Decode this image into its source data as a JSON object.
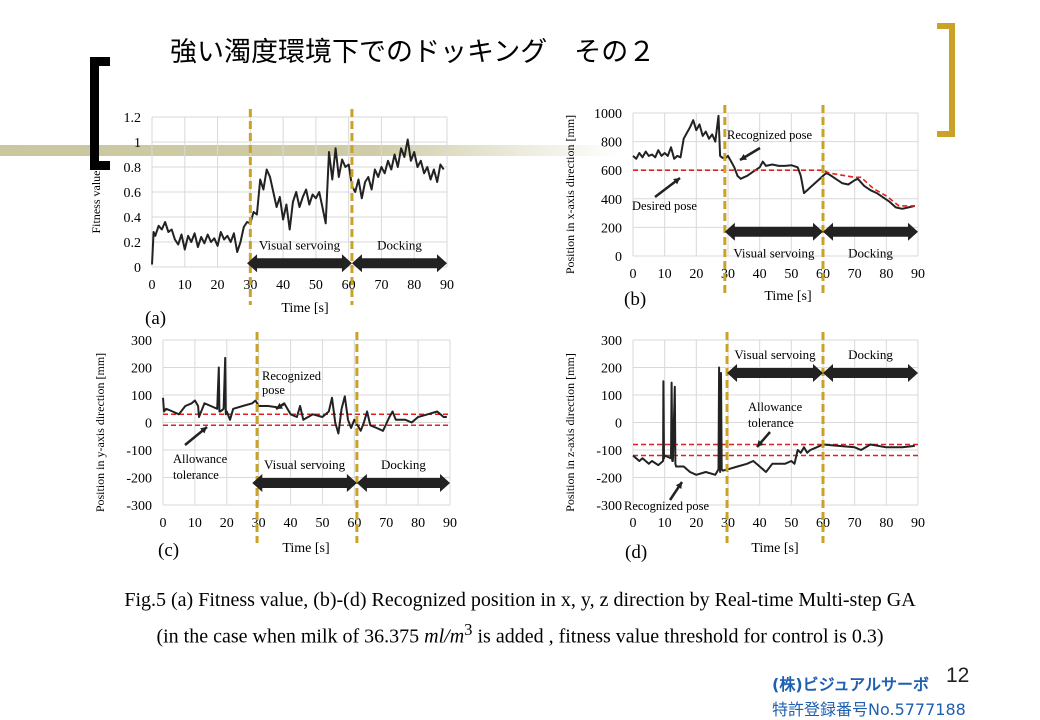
{
  "slide": {
    "title": "強い濁度環境下でのドッキング　その２",
    "caption_line1": "Fig.5 (a) Fitness value, (b)-(d) Recognized position in x, y, z direction by Real-time Multi-step GA",
    "caption_line2_pre": "(in the case when milk of 36.375 ",
    "caption_unit": "ml/m",
    "caption_exp": "3",
    "caption_line2_post": " is added , fitness value threshold for control is 0.3)",
    "company": "(株)ビジュアルサーボ",
    "patent": "特許登録番号No.5777188",
    "page_number": "12",
    "colors": {
      "accent_gold": "#c9a227",
      "band": "#c9c79e",
      "footer_blue": "#1f5fb0",
      "desired": "#e02020",
      "series": "#222222"
    }
  },
  "chart_data": [
    {
      "type": "line",
      "panel": "(a)",
      "xlabel": "Time  [s]",
      "ylabel": "Fitness value",
      "xlim": [
        0,
        90
      ],
      "ylim": [
        0,
        1.2
      ],
      "xticks": [
        0,
        10,
        20,
        30,
        40,
        50,
        60,
        70,
        80,
        90
      ],
      "yticks": [
        "0",
        "0.2",
        "0.4",
        "0.6",
        "0.8",
        "1",
        "1.2"
      ],
      "ytick_values": [
        0,
        0.2,
        0.4,
        0.6,
        0.8,
        1,
        1.2
      ],
      "grid": true,
      "phase_lines": [
        30,
        61
      ],
      "phases": [
        {
          "label": "Visual  servoing",
          "from": 29,
          "to": 61,
          "y": 0.03
        },
        {
          "label": "Docking",
          "from": 61,
          "to": 90,
          "y": 0.03
        }
      ],
      "series": [
        {
          "x": [
            0,
            0.5,
            1,
            2,
            3,
            4,
            5,
            6,
            7,
            8,
            9,
            10,
            11,
            12,
            13,
            14,
            15,
            16,
            17,
            18,
            19,
            20,
            21,
            22,
            23,
            24,
            25,
            26,
            27,
            28,
            29,
            30,
            31,
            32,
            33,
            34,
            35,
            36,
            37,
            38,
            39,
            40,
            41,
            42,
            43,
            44,
            45,
            46,
            47,
            48,
            49,
            50,
            51,
            52,
            53,
            54,
            55,
            56,
            57,
            58,
            59,
            60,
            61,
            62,
            63,
            64,
            65,
            66,
            67,
            68,
            69,
            70,
            71,
            72,
            73,
            74,
            75,
            76,
            77,
            78,
            79,
            80,
            81,
            82,
            83,
            84,
            85,
            86,
            87,
            88,
            89
          ],
          "y": [
            0.02,
            0.28,
            0.25,
            0.33,
            0.3,
            0.36,
            0.28,
            0.3,
            0.22,
            0.18,
            0.26,
            0.14,
            0.25,
            0.2,
            0.27,
            0.16,
            0.24,
            0.19,
            0.26,
            0.2,
            0.23,
            0.17,
            0.28,
            0.22,
            0.25,
            0.2,
            0.27,
            0.12,
            0.2,
            0.32,
            0.36,
            0.35,
            0.44,
            0.42,
            0.7,
            0.62,
            0.78,
            0.72,
            0.6,
            0.48,
            0.56,
            0.38,
            0.5,
            0.3,
            0.52,
            0.6,
            0.48,
            0.56,
            0.62,
            0.5,
            0.58,
            0.55,
            0.6,
            0.48,
            0.35,
            0.92,
            0.7,
            0.95,
            0.72,
            0.86,
            0.8,
            0.82,
            0.65,
            0.6,
            0.7,
            0.55,
            0.68,
            0.72,
            0.62,
            0.78,
            0.72,
            0.8,
            0.75,
            0.85,
            0.78,
            0.9,
            0.8,
            0.95,
            0.88,
            1.02,
            0.85,
            0.92,
            0.8,
            0.85,
            0.75,
            0.8,
            0.7,
            0.78,
            0.68,
            0.82,
            0.78
          ]
        }
      ],
      "annotations": []
    },
    {
      "type": "line",
      "panel": "(b)",
      "xlabel": "Time  [s]",
      "ylabel": "Position in x-axis direction [mm]",
      "xlim": [
        0,
        90
      ],
      "ylim": [
        0,
        1000
      ],
      "xticks": [
        0,
        10,
        20,
        30,
        40,
        50,
        60,
        70,
        80,
        90
      ],
      "yticks": [
        "0",
        "200",
        "400",
        "600",
        "800",
        "1000"
      ],
      "ytick_values": [
        0,
        200,
        400,
        600,
        800,
        1000
      ],
      "grid": true,
      "phase_lines": [
        29,
        60
      ],
      "phases": [
        {
          "label": "Visual  servoing",
          "from": 29,
          "to": 60,
          "y": 170
        },
        {
          "label": "Docking",
          "from": 60,
          "to": 90,
          "y": 170
        }
      ],
      "series": [
        {
          "x": [
            0,
            1,
            2,
            3,
            4,
            5,
            6,
            7,
            8,
            9,
            10,
            11,
            12,
            13,
            14,
            15,
            16,
            17,
            18,
            19,
            20,
            21,
            22,
            23,
            24,
            25,
            26,
            27,
            27.5,
            28,
            29,
            30,
            31,
            32,
            33,
            34,
            35,
            36,
            38,
            40,
            41,
            42,
            44,
            46,
            48,
            50,
            52,
            53,
            54,
            55,
            56,
            58,
            60,
            61,
            62,
            64,
            66,
            68,
            70,
            71,
            73,
            75,
            77,
            79,
            81,
            83,
            85,
            87,
            89
          ],
          "y": [
            700,
            680,
            720,
            690,
            730,
            700,
            710,
            690,
            740,
            700,
            720,
            700,
            760,
            680,
            700,
            690,
            820,
            860,
            900,
            950,
            880,
            920,
            840,
            870,
            820,
            850,
            800,
            980,
            700,
            690,
            680,
            700,
            660,
            620,
            560,
            540,
            550,
            560,
            590,
            620,
            660,
            630,
            640,
            630,
            630,
            635,
            620,
            560,
            440,
            460,
            480,
            520,
            560,
            580,
            570,
            540,
            510,
            500,
            530,
            540,
            490,
            460,
            440,
            410,
            380,
            340,
            330,
            340,
            350
          ]
        },
        {
          "name_hidden": true,
          "style": "desired",
          "x": [
            0,
            60,
            62,
            70,
            72,
            76,
            80,
            84,
            89
          ],
          "y": [
            600,
            600,
            580,
            550,
            550,
            470,
            420,
            350,
            350
          ]
        }
      ],
      "annotations": [
        {
          "text": "Recognized pose"
        },
        {
          "text": "Desired pose"
        }
      ]
    },
    {
      "type": "line",
      "panel": "(c)",
      "xlabel": "Time  [s]",
      "ylabel": "Position in y-axis direction [mm]",
      "xlim": [
        0,
        90
      ],
      "ylim": [
        -300,
        300
      ],
      "xticks": [
        0,
        10,
        20,
        30,
        40,
        50,
        60,
        70,
        80,
        90
      ],
      "yticks": [
        "-300",
        "-200",
        "-100",
        "0",
        "100",
        "200",
        "300"
      ],
      "ytick_values": [
        -300,
        -200,
        -100,
        0,
        100,
        200,
        300
      ],
      "grid": true,
      "phase_lines": [
        29.5,
        60.8
      ],
      "phases": [
        {
          "label": "Visual  servoing",
          "from": 28,
          "to": 60.8,
          "y": -220
        },
        {
          "label": "Docking",
          "from": 60.8,
          "to": 90,
          "y": -220
        }
      ],
      "tolerance": [
        30,
        -10
      ],
      "series": [
        {
          "x": [
            0,
            0.3,
            1,
            3,
            5,
            7,
            9,
            10,
            11,
            11.3,
            13,
            15,
            17,
            17.5,
            17.7,
            18,
            19,
            19.5,
            19.7,
            20,
            21,
            22,
            25,
            28,
            29,
            30,
            33,
            36,
            38,
            40,
            42,
            43,
            44,
            47,
            50,
            52,
            53,
            54,
            55,
            56,
            57,
            58,
            59,
            60,
            62,
            63,
            64,
            65,
            67,
            69,
            71,
            72,
            73,
            76,
            78,
            80,
            83,
            86,
            88,
            89
          ],
          "y": [
            90,
            40,
            50,
            40,
            30,
            60,
            70,
            80,
            60,
            20,
            70,
            60,
            50,
            200,
            40,
            40,
            50,
            235,
            30,
            40,
            10,
            50,
            60,
            70,
            80,
            60,
            60,
            55,
            70,
            30,
            20,
            60,
            10,
            30,
            20,
            40,
            90,
            0,
            -40,
            50,
            95,
            10,
            -20,
            10,
            -30,
            0,
            40,
            -10,
            -20,
            -30,
            20,
            40,
            10,
            10,
            0,
            20,
            30,
            40,
            20,
            20
          ]
        }
      ],
      "annotations": [
        {
          "text": "Recognized"
        },
        {
          "text": "pose"
        },
        {
          "text": "Allowance"
        },
        {
          "text": "tolerance"
        }
      ]
    },
    {
      "type": "line",
      "panel": "(d)",
      "xlabel": "Time  [s]",
      "ylabel": "Position in z-axis direction [mm]",
      "xlim": [
        0,
        90
      ],
      "ylim": [
        -300,
        300
      ],
      "xticks": [
        0,
        10,
        20,
        30,
        40,
        50,
        60,
        70,
        80,
        90
      ],
      "yticks": [
        "-300",
        "-200",
        "-100",
        "0",
        "100",
        "200",
        "300"
      ],
      "ytick_values": [
        -300,
        -200,
        -100,
        0,
        100,
        200,
        300
      ],
      "grid": true,
      "phase_lines": [
        29.7,
        60
      ],
      "phases": [
        {
          "label": "Visual  servoing",
          "from": 29.7,
          "to": 60,
          "y": 180
        },
        {
          "label": "Docking",
          "from": 60,
          "to": 90,
          "y": 180
        }
      ],
      "tolerance": [
        -80,
        -120
      ],
      "series": [
        {
          "x": [
            0,
            2,
            3,
            5,
            6,
            8,
            9.5,
            9.6,
            9.8,
            10,
            12,
            12.2,
            12.4,
            12.6,
            13.2,
            13.4,
            13.6,
            16,
            18,
            20,
            23,
            26,
            27,
            27.2,
            27.5,
            27.8,
            28,
            28.3,
            30,
            33,
            36,
            38,
            40,
            42,
            44,
            46,
            48,
            50,
            51,
            52,
            53,
            54,
            55,
            56,
            58,
            60,
            65,
            70,
            72,
            75,
            80,
            85,
            89
          ],
          "y": [
            -120,
            -140,
            -130,
            -150,
            -140,
            -155,
            -140,
            150,
            -130,
            -120,
            -130,
            145,
            -140,
            -140,
            130,
            -150,
            -160,
            -160,
            -180,
            -190,
            -180,
            -190,
            -170,
            200,
            -180,
            180,
            -170,
            -175,
            -170,
            -160,
            -150,
            -140,
            -160,
            -180,
            -150,
            -150,
            -150,
            -140,
            -150,
            -100,
            -110,
            -90,
            -110,
            -100,
            -90,
            -80,
            -85,
            -90,
            -100,
            -80,
            -90,
            -90,
            -85
          ]
        }
      ],
      "annotations": [
        {
          "text": "Allowance"
        },
        {
          "text": "tolerance"
        },
        {
          "text": "Recognized pose"
        }
      ]
    }
  ]
}
